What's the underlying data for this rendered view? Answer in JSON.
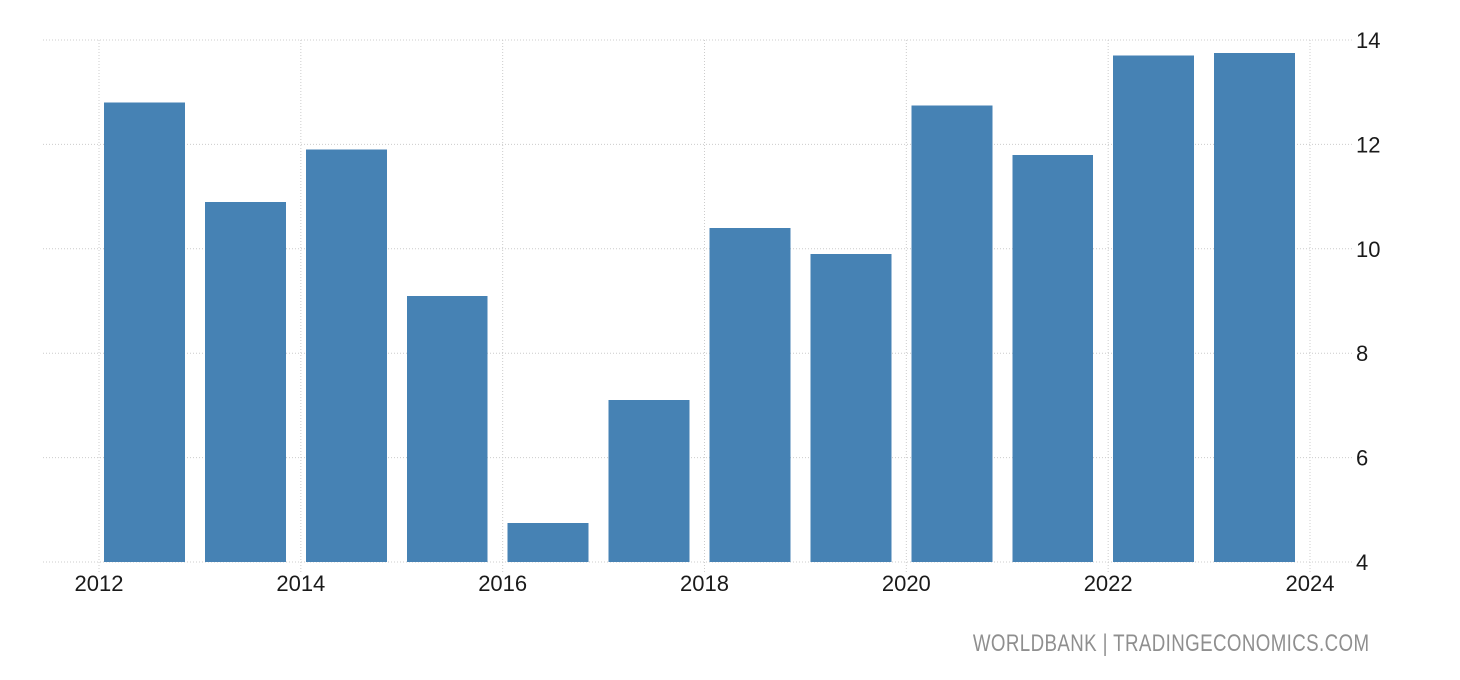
{
  "chart_data": {
    "type": "bar",
    "categories": [
      "2012",
      "2013",
      "2014",
      "2015",
      "2016",
      "2017",
      "2018",
      "2019",
      "2020",
      "2021",
      "2022",
      "2023"
    ],
    "values": [
      12.8,
      10.9,
      11.9,
      9.1,
      4.75,
      7.1,
      10.4,
      9.9,
      12.75,
      11.8,
      13.7,
      13.75
    ],
    "xticks": [
      2012,
      2014,
      2016,
      2018,
      2020,
      2022,
      2024
    ],
    "yticks": [
      4,
      6,
      8,
      10,
      12,
      14
    ],
    "xlim": [
      2012,
      2024
    ],
    "ylim": [
      4,
      14
    ],
    "grid": "dotted",
    "legend_position": "none",
    "y_axis_side": "right",
    "bar_color": "#4682b4",
    "grid_color": "#cccccc",
    "tick_label_color": "#1a1a1a"
  },
  "watermark": {
    "text": "WORLDBANK | TRADINGECONOMICS.COM",
    "color": "#8f8f8f"
  }
}
